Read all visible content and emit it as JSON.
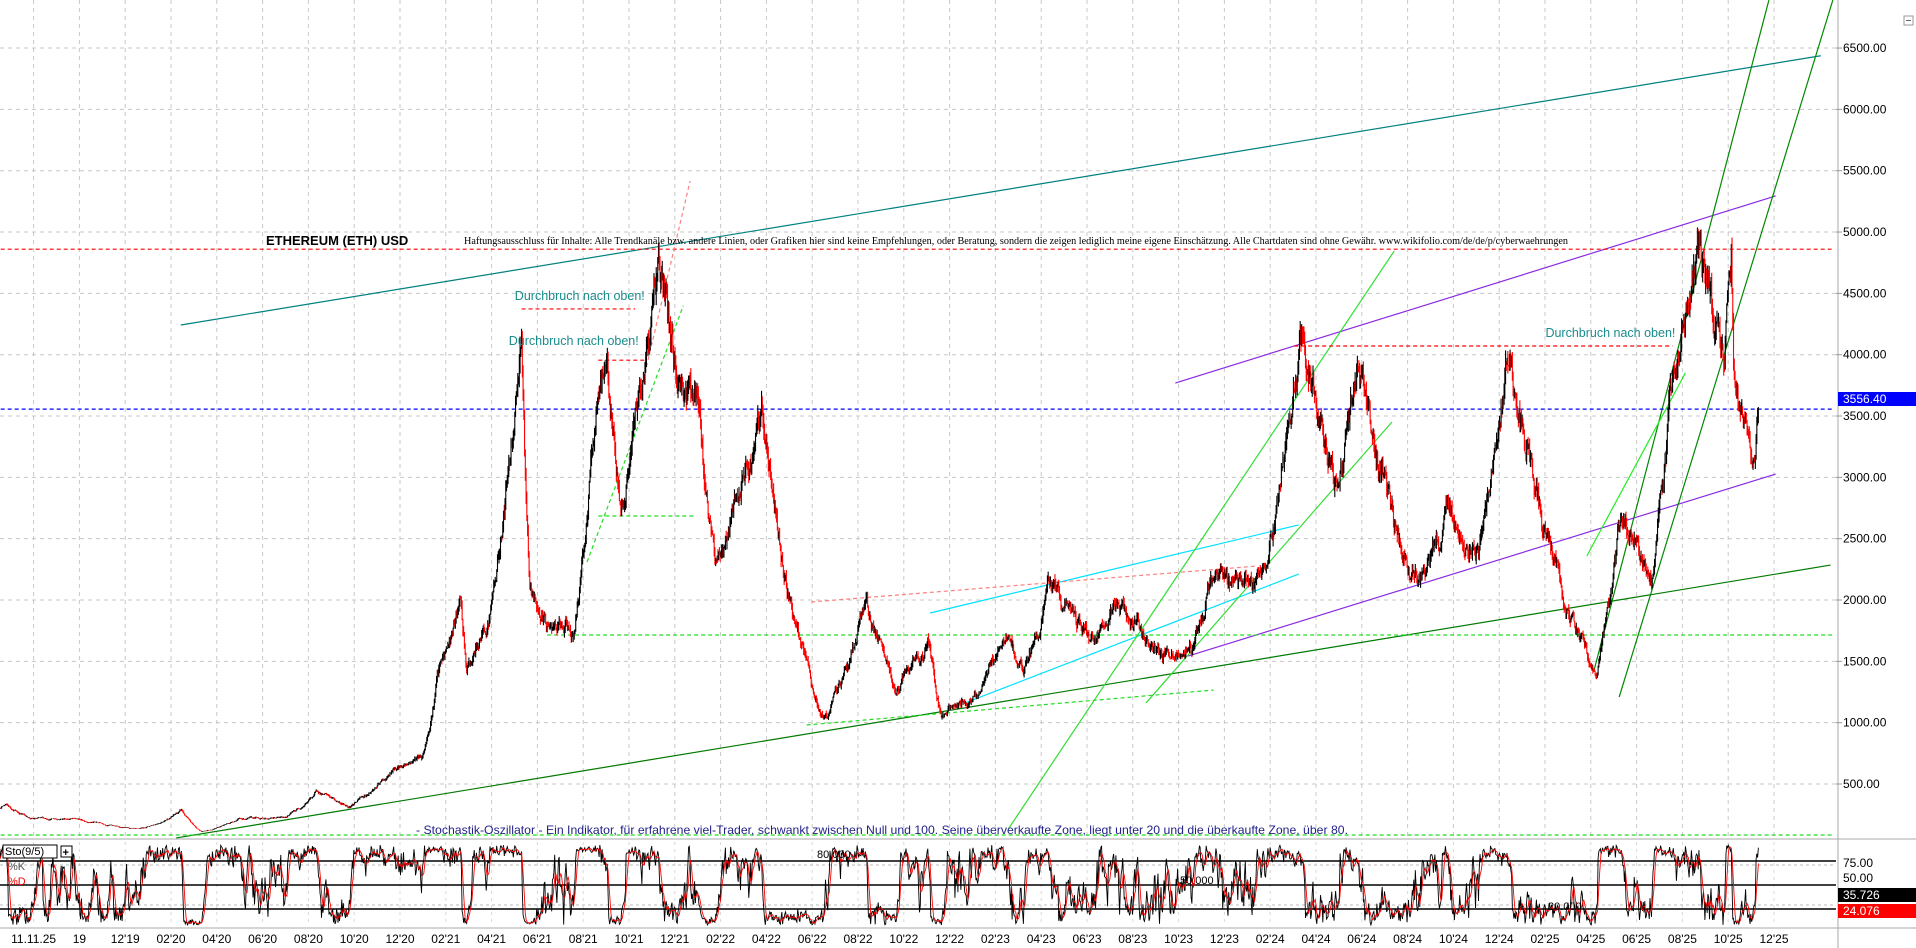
{
  "chart_data": {
    "type": "candlestick",
    "title": "ETHEREUM (ETH) USD",
    "disclaimer": "Haftungsausschluss für Inhalte: Alle Trendkanäle bzw. andere Linien, oder Grafiken hier sind keine Empfehlungen, oder Beratung, sondern die zeigen lediglich meine eigene Einschätzung. Alle Chartdaten sind ohne Gewähr.  www.wikifolio.com/de/de/p/cyberwaehrungen",
    "ylim": [
      0,
      6900
    ],
    "y_ticks": [
      "500.00",
      "1000.00",
      "1500.00",
      "2000.00",
      "2500.00",
      "3000.00",
      "3500.00",
      "4000.00",
      "4500.00",
      "5000.00",
      "5500.00",
      "6000.00",
      "6500.00"
    ],
    "x_ticks": [
      "11.11.25",
      "19",
      "12'19",
      "02'20",
      "04'20",
      "06'20",
      "08'20",
      "10'20",
      "12'20",
      "02'21",
      "04'21",
      "06'21",
      "08'21",
      "10'21",
      "12'21",
      "02'22",
      "04'22",
      "06'22",
      "08'22",
      "10'22",
      "12'22",
      "02'23",
      "04'23",
      "06'23",
      "08'23",
      "10'23",
      "12'23",
      "02'24",
      "04'24",
      "06'24",
      "08'24",
      "10'24",
      "12'24",
      "02'25",
      "04'25",
      "06'25",
      "08'25",
      "10'25",
      "12'25"
    ],
    "grid": true,
    "current_price": "3556.40",
    "colors": {
      "up": "#000000",
      "down": "#ff0000",
      "price_marker": "#0000ff"
    },
    "price_path": [
      [
        "2019-06-01",
        250
      ],
      [
        "2019-06-26",
        330
      ],
      [
        "2019-08-01",
        215
      ],
      [
        "2019-09-20",
        220
      ],
      [
        "2019-11-01",
        180
      ],
      [
        "2019-12-18",
        125
      ],
      [
        "2020-02-15",
        285
      ],
      [
        "2020-03-13",
        110
      ],
      [
        "2020-04-30",
        215
      ],
      [
        "2020-06-30",
        225
      ],
      [
        "2020-08-14",
        440
      ],
      [
        "2020-09-23",
        320
      ],
      [
        "2020-11-24",
        610
      ],
      [
        "2020-12-31",
        740
      ],
      [
        "2021-01-20",
        1380
      ],
      [
        "2021-02-20",
        1950
      ],
      [
        "2021-02-28",
        1400
      ],
      [
        "2021-03-31",
        1900
      ],
      [
        "2021-05-12",
        4300
      ],
      [
        "2021-05-23",
        2000
      ],
      [
        "2021-06-22",
        1750
      ],
      [
        "2021-07-20",
        1730
      ],
      [
        "2021-08-15",
        3300
      ],
      [
        "2021-09-03",
        3900
      ],
      [
        "2021-09-21",
        2750
      ],
      [
        "2021-11-10",
        4850
      ],
      [
        "2021-12-04",
        3800
      ],
      [
        "2021-12-31",
        3700
      ],
      [
        "2022-01-24",
        2300
      ],
      [
        "2022-03-29",
        3450
      ],
      [
        "2022-05-12",
        1800
      ],
      [
        "2022-06-18",
        1000
      ],
      [
        "2022-08-13",
        2000
      ],
      [
        "2022-09-21",
        1250
      ],
      [
        "2022-11-05",
        1650
      ],
      [
        "2022-11-21",
        1080
      ],
      [
        "2022-12-31",
        1200
      ],
      [
        "2023-02-16",
        1700
      ],
      [
        "2023-03-10",
        1400
      ],
      [
        "2023-04-15",
        2120
      ],
      [
        "2023-06-15",
        1630
      ],
      [
        "2023-07-14",
        2000
      ],
      [
        "2023-09-11",
        1540
      ],
      [
        "2023-10-20",
        1600
      ],
      [
        "2023-11-10",
        2100
      ],
      [
        "2024-01-23",
        2200
      ],
      [
        "2024-03-12",
        4080
      ],
      [
        "2024-05-01",
        2900
      ],
      [
        "2024-05-27",
        3950
      ],
      [
        "2024-07-05",
        2850
      ],
      [
        "2024-08-05",
        2150
      ],
      [
        "2024-09-27",
        2700
      ],
      [
        "2024-11-04",
        2400
      ],
      [
        "2024-12-16",
        4100
      ],
      [
        "2025-01-10",
        3200
      ],
      [
        "2025-02-03",
        2500
      ],
      [
        "2025-03-11",
        1800
      ],
      [
        "2025-04-09",
        1400
      ],
      [
        "2025-05-13",
        2700
      ],
      [
        "2025-06-22",
        2200
      ],
      [
        "2025-07-20",
        3800
      ],
      [
        "2025-08-24",
        4880
      ],
      [
        "2025-09-25",
        3850
      ],
      [
        "2025-10-06",
        4700
      ],
      [
        "2025-10-10",
        3700
      ],
      [
        "2025-11-04",
        3300
      ],
      [
        "2025-11-11",
        3556
      ]
    ],
    "trendlines": [
      {
        "from": [
          "2020-02-14",
          4242
        ],
        "to": [
          "2026-02-02",
          6437
        ],
        "color": "#008080",
        "dash": false
      },
      {
        "from": [
          "2020-02-08",
          60
        ],
        "to": [
          "2026-02-15",
          2285
        ],
        "color": "#007a00",
        "dash": false
      },
      {
        "from": [
          "2023-09-28",
          3769
        ],
        "to": [
          "2025-12-04",
          5294
        ],
        "color": "#8a2be2",
        "dash": false
      },
      {
        "from": [
          "2023-10-15",
          1543
        ],
        "to": [
          "2025-12-04",
          3027
        ],
        "color": "#8a2be2",
        "dash": false
      },
      {
        "from": [
          "2022-11-06",
          1894
        ],
        "to": [
          "2024-03-10",
          2612
        ],
        "color": "#00e0ff",
        "dash": false
      },
      {
        "from": [
          "2022-12-12",
          1136
        ],
        "to": [
          "2024-03-10",
          2212
        ],
        "color": "#00e0ff",
        "dash": false
      },
      {
        "from": [
          "2023-02-18",
          133
        ],
        "to": [
          "2024-07-15",
          4846
        ],
        "color": "#33dd33",
        "dash": false
      },
      {
        "from": [
          "2023-08-20",
          1160
        ],
        "to": [
          "2024-07-12",
          3451
        ],
        "color": "#33dd33",
        "dash": false
      },
      {
        "from": [
          "2025-05-10",
          1209
        ],
        "to": [
          "2026-02-18",
          6891
        ],
        "color": "#008800",
        "dash": false
      },
      {
        "from": [
          "2025-04-06",
          1413
        ],
        "to": [
          "2025-11-25",
          6891
        ],
        "color": "#008800",
        "dash": false
      },
      {
        "from": [
          "2025-03-28",
          2359
        ],
        "to": [
          "2025-08-06",
          3851
        ],
        "color": "#22ee22",
        "dash": false
      },
      {
        "from": [
          "2021-06-15",
          1715
        ],
        "to": [
          "2026-02-18",
          1715
        ],
        "color": "#22dd22",
        "dash": true
      },
      {
        "from": [
          "2019-06-01",
          84
        ],
        "to": [
          "2026-02-18",
          84
        ],
        "color": "#22dd22",
        "dash": true
      },
      {
        "from": [
          "2021-08-07",
          2310
        ],
        "to": [
          "2021-12-13",
          4400
        ],
        "color": "#22dd22",
        "dash": true
      },
      {
        "from": [
          "2021-08-22",
          2685
        ],
        "to": [
          "2021-12-28",
          2685
        ],
        "color": "#22dd22",
        "dash": true
      },
      {
        "from": [
          "2022-05-26",
          981
        ],
        "to": [
          "2023-11-18",
          1266
        ],
        "color": "#22dd22",
        "dash": true
      },
      {
        "from": [
          "2019-06-01",
          4860
        ],
        "to": [
          "2026-02-18",
          4860
        ],
        "color": "#ff0000",
        "dash": true
      },
      {
        "from": [
          "2024-03-04",
          4071
        ],
        "to": [
          "2025-07-20",
          4071
        ],
        "color": "#ff0000",
        "dash": true
      },
      {
        "from": [
          "2021-05-12",
          4373
        ],
        "to": [
          "2021-10-10",
          4373
        ],
        "color": "#ff0000",
        "dash": true
      },
      {
        "from": [
          "2021-08-22",
          3955
        ],
        "to": [
          "2021-10-25",
          3955
        ],
        "color": "#ff0000",
        "dash": true
      },
      {
        "from": [
          "2021-10-25",
          3900
        ],
        "to": [
          "2021-12-22",
          5416
        ],
        "color": "#ff8080",
        "dash": true
      },
      {
        "from": [
          "2022-06-01",
          1984
        ],
        "to": [
          "2024-01-15",
          2277
        ],
        "color": "#ff8080",
        "dash": true
      },
      {
        "from": [
          "2019-06-01",
          3556
        ],
        "to": [
          "2026-02-18",
          3556
        ],
        "color": "#0000ff",
        "dash": true
      }
    ],
    "annotations": [
      {
        "text": "Durchbruch nach oben!",
        "date": "2021-05-03",
        "price": 4446
      },
      {
        "text": "Durchbruch nach oben!",
        "date": "2021-04-25",
        "price": 4079
      },
      {
        "text": "Durchbruch nach oben!",
        "date": "2025-02-01",
        "price": 4144
      }
    ],
    "stochastic": {
      "label": "Sto(9/5)",
      "k_label": "%K",
      "d_label": "%D",
      "k_value": "35.726",
      "d_value": "24.076",
      "ylim": [
        0,
        100
      ],
      "levels": [
        80,
        50,
        20
      ],
      "level_labels": [
        "80.000",
        "50.000",
        "20.000"
      ],
      "y_ticks": [
        "75.00",
        "50.00"
      ],
      "description": "- Stochastik-Oszillator - Ein Indikator, für erfahrene viel-Trader, schwankt zwischen Null und 100. Seine überverkaufte Zone, liegt unter 20 und die überkaufte Zone, über 80.",
      "colors": {
        "k": "#000000",
        "d": "#ff0000"
      }
    }
  }
}
